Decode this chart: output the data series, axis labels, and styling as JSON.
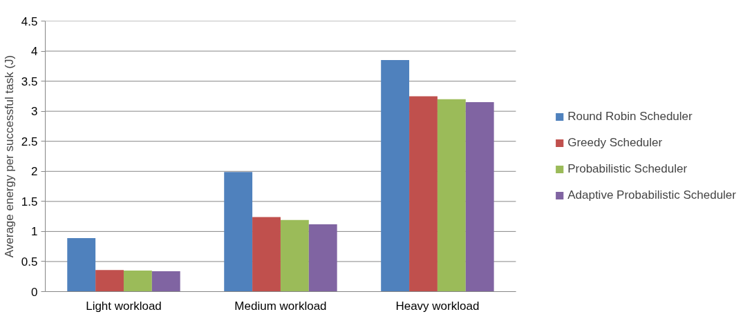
{
  "chart_data": {
    "type": "bar",
    "ylabel": "Average energy per successful task (J)",
    "categories": [
      "Light workload",
      "Medium workload",
      "Heavy workload"
    ],
    "series": [
      {
        "name": "Round Robin Scheduler",
        "color": "#4f81bd",
        "values": [
          0.89,
          1.99,
          3.85
        ]
      },
      {
        "name": "Greedy Scheduler",
        "color": "#c0504d",
        "values": [
          0.36,
          1.24,
          3.25
        ]
      },
      {
        "name": "Probabilistic Scheduler",
        "color": "#9bbb59",
        "values": [
          0.35,
          1.19,
          3.2
        ]
      },
      {
        "name": "Adaptive Probabilistic Scheduler",
        "color": "#8064a2",
        "values": [
          0.34,
          1.12,
          3.15
        ]
      }
    ],
    "ylim": [
      0,
      4.5
    ],
    "yticks": [
      0,
      0.5,
      1,
      1.5,
      2,
      2.5,
      3,
      3.5,
      4,
      4.5
    ],
    "grid": "y",
    "legend": "right"
  }
}
